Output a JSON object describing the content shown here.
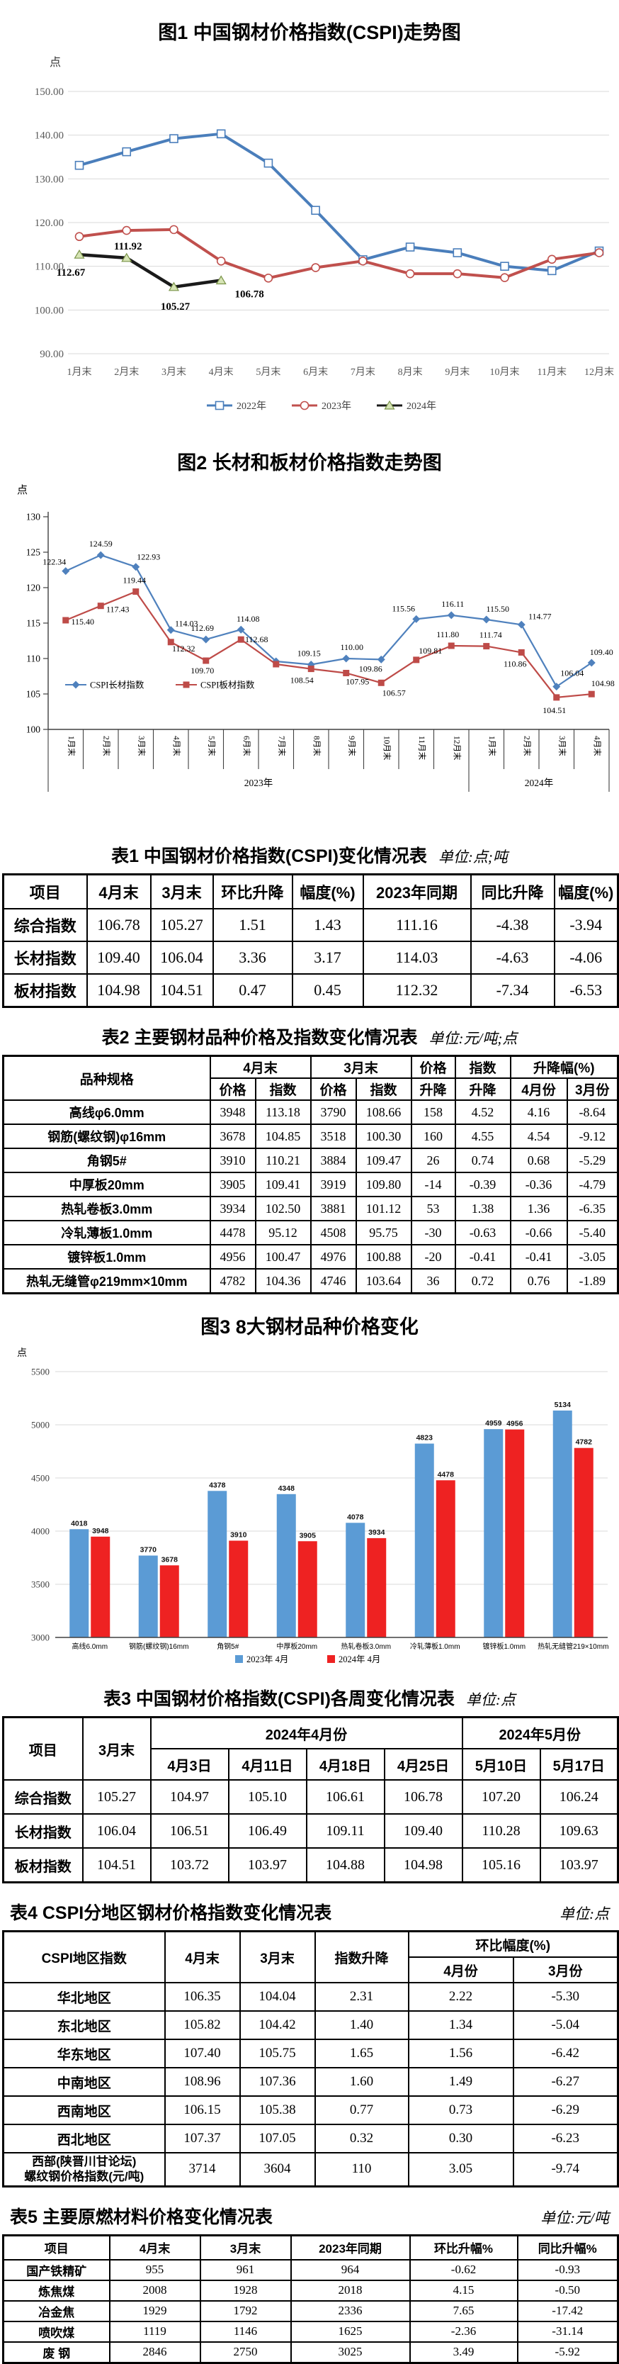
{
  "chart_data": [
    {
      "id": "figure1",
      "type": "line",
      "title": "图1 中国钢材价格指数(CSPI)走势图",
      "unit_label": "点",
      "categories": [
        "1月末",
        "2月末",
        "3月末",
        "4月末",
        "5月末",
        "6月末",
        "7月末",
        "8月末",
        "9月末",
        "10月末",
        "11月末",
        "12月末"
      ],
      "ylim": [
        90,
        150
      ],
      "ytick_step": 10,
      "grid": true,
      "legend_position": "bottom",
      "series": [
        {
          "name": "2022年",
          "color": "#4a7ebb",
          "marker": "square",
          "marker_style": "hollow",
          "values": [
            133.1,
            136.2,
            139.2,
            140.3,
            133.6,
            122.8,
            111.5,
            114.4,
            113.1,
            110.0,
            109.0,
            113.5
          ]
        },
        {
          "name": "2023年",
          "color": "#c0504d",
          "marker": "circle",
          "marker_style": "hollow",
          "values": [
            116.8,
            118.2,
            118.4,
            111.2,
            107.3,
            109.7,
            111.2,
            108.3,
            108.3,
            107.4,
            111.6,
            113.1
          ]
        },
        {
          "name": "2024年",
          "color": "#1a1a1a",
          "marker": "triangle",
          "marker_style": "solid",
          "marker_fill": "#d6e4b5",
          "values": [
            112.67,
            111.92,
            105.27,
            106.78
          ],
          "labels": [
            "112.67",
            "111.92",
            "105.27",
            "106.78"
          ]
        }
      ]
    },
    {
      "id": "figure2",
      "type": "line",
      "title": "图2 长材和板材价格指数走势图",
      "unit_label": "点",
      "categories": [
        "1月末",
        "2月末",
        "3月末",
        "4月末",
        "5月末",
        "6月末",
        "7月末",
        "8月末",
        "9月末",
        "10月末",
        "11月末",
        "12月末",
        "1月末",
        "2月末",
        "3月末",
        "4月末"
      ],
      "x_groups": [
        {
          "label": "2023年",
          "count": 12
        },
        {
          "label": "2024年",
          "count": 4
        }
      ],
      "ylim": [
        100,
        130
      ],
      "ytick_step": 5,
      "grid": false,
      "series": [
        {
          "name": "CSPI长材指数",
          "color": "#4f81bd",
          "marker": "diamond",
          "marker_style": "solid",
          "values": [
            122.34,
            124.59,
            122.93,
            114.03,
            112.69,
            114.08,
            109.6,
            109.15,
            110.0,
            109.86,
            115.56,
            116.11,
            115.5,
            114.77,
            106.04,
            109.4
          ],
          "labels": [
            "122.34",
            "124.59",
            "122.93",
            "114.03",
            "112.69",
            "114.08",
            "",
            "109.15",
            "110.00",
            "109.86",
            "115.56",
            "116.11",
            "115.50",
            "114.77",
            "106.04",
            "109.40"
          ]
        },
        {
          "name": "CSPI板材指数",
          "color": "#be4b48",
          "marker": "square",
          "marker_style": "solid",
          "values": [
            115.4,
            117.43,
            119.44,
            112.32,
            109.7,
            112.68,
            109.2,
            108.54,
            107.95,
            106.57,
            109.81,
            111.8,
            111.74,
            110.86,
            104.51,
            104.98
          ],
          "labels": [
            "115.40",
            "117.43",
            "119.44",
            "112.32",
            "109.70",
            "112.68",
            "",
            "108.54",
            "107.95",
            "106.57",
            "109.81",
            "111.80",
            "111.74",
            "110.86",
            "104.51",
            "104.98"
          ]
        }
      ]
    },
    {
      "id": "figure3",
      "type": "bar",
      "title": "图3 8大钢材品种价格变化",
      "unit_label": "点",
      "categories": [
        "高线6.0mm",
        "钢筋(螺纹钢)16mm",
        "角钢5#",
        "中厚板20mm",
        "热轧卷板3.0mm",
        "冷轧薄板1.0mm",
        "镀锌板1.0mm",
        "热轧无缝管219×10mm"
      ],
      "ylim": [
        3000,
        5500
      ],
      "ytick_step": 500,
      "legend_position": "bottom",
      "series": [
        {
          "name": "2023年 4月",
          "color": "#5b9bd5",
          "values": [
            4018,
            3770,
            4378,
            4348,
            4078,
            4823,
            4959,
            5134
          ]
        },
        {
          "name": "2024年 4月",
          "color": "#ee2222",
          "values": [
            3948,
            3678,
            3910,
            3905,
            3934,
            4478,
            4956,
            4782
          ]
        }
      ]
    }
  ],
  "tables": {
    "table1": {
      "title": "表1 中国钢材价格指数(CSPI)变化情况表",
      "unit": "单位:点;吨",
      "header": [
        [
          "项目",
          "4月末",
          "3月末",
          "环比升降",
          "幅度(%)",
          "2023年同期",
          "同比升降",
          "幅度(%)"
        ]
      ],
      "rows": [
        [
          "综合指数",
          "106.78",
          "105.27",
          "1.51",
          "1.43",
          "111.16",
          "-4.38",
          "-3.94"
        ],
        [
          "长材指数",
          "109.40",
          "106.04",
          "3.36",
          "3.17",
          "114.03",
          "-4.63",
          "-4.06"
        ],
        [
          "板材指数",
          "104.98",
          "104.51",
          "0.47",
          "0.45",
          "112.32",
          "-7.34",
          "-6.53"
        ]
      ]
    },
    "table2": {
      "title": "表2 主要钢材品种价格及指数变化情况表",
      "unit": "单位:元/吨;点",
      "header": [
        [
          {
            "t": "品种规格",
            "rs": 2
          },
          {
            "t": "4月末",
            "cs": 2
          },
          {
            "t": "3月末",
            "cs": 2
          },
          {
            "t": "价格"
          },
          {
            "t": "指数"
          },
          {
            "t": "升降幅(%)",
            "cs": 2
          }
        ],
        [
          "价格",
          "指数",
          "价格",
          "指数",
          "升降",
          "升降",
          "4月份",
          "3月份"
        ]
      ],
      "rows": [
        [
          "高线φ6.0mm",
          "3948",
          "113.18",
          "3790",
          "108.66",
          "158",
          "4.52",
          "4.16",
          "-8.64"
        ],
        [
          "钢筋(螺纹钢)φ16mm",
          "3678",
          "104.85",
          "3518",
          "100.30",
          "160",
          "4.55",
          "4.54",
          "-9.12"
        ],
        [
          "角钢5#",
          "3910",
          "110.21",
          "3884",
          "109.47",
          "26",
          "0.74",
          "0.68",
          "-5.29"
        ],
        [
          "中厚板20mm",
          "3905",
          "109.41",
          "3919",
          "109.80",
          "-14",
          "-0.39",
          "-0.36",
          "-4.79"
        ],
        [
          "热轧卷板3.0mm",
          "3934",
          "102.50",
          "3881",
          "101.12",
          "53",
          "1.38",
          "1.36",
          "-6.35"
        ],
        [
          "冷轧薄板1.0mm",
          "4478",
          "95.12",
          "4508",
          "95.75",
          "-30",
          "-0.63",
          "-0.66",
          "-5.40"
        ],
        [
          "镀锌板1.0mm",
          "4956",
          "100.47",
          "4976",
          "100.88",
          "-20",
          "-0.41",
          "-0.41",
          "-3.05"
        ],
        [
          "热轧无缝管φ219mm×10mm",
          "4782",
          "104.36",
          "4746",
          "103.64",
          "36",
          "0.72",
          "0.76",
          "-1.89"
        ]
      ]
    },
    "table3": {
      "title": "表3 中国钢材价格指数(CSPI)各周变化情况表",
      "unit": "单位:点",
      "header": [
        [
          {
            "t": "项目",
            "rs": 2
          },
          {
            "t": "3月末",
            "rs": 2
          },
          {
            "t": "2024年4月份",
            "cs": 4
          },
          {
            "t": "2024年5月份",
            "cs": 2
          }
        ],
        [
          "4月3日",
          "4月11日",
          "4月18日",
          "4月25日",
          "5月10日",
          "5月17日"
        ]
      ],
      "rows": [
        [
          "综合指数",
          "105.27",
          "104.97",
          "105.10",
          "106.61",
          "106.78",
          "107.20",
          "106.24"
        ],
        [
          "长材指数",
          "106.04",
          "106.51",
          "106.49",
          "109.11",
          "109.40",
          "110.28",
          "109.63"
        ],
        [
          "板材指数",
          "104.51",
          "103.72",
          "103.97",
          "104.88",
          "104.98",
          "105.16",
          "103.97"
        ]
      ]
    },
    "table4": {
      "title": "表4 CSPI分地区钢材价格指数变化情况表",
      "unit": "单位:点",
      "header": [
        [
          {
            "t": "CSPI地区指数",
            "rs": 2
          },
          {
            "t": "4月末",
            "rs": 2
          },
          {
            "t": "3月末",
            "rs": 2
          },
          {
            "t": "指数升降",
            "rs": 2
          },
          {
            "t": "环比幅度(%)",
            "cs": 2
          }
        ],
        [
          "4月份",
          "3月份"
        ]
      ],
      "rows": [
        [
          "华北地区",
          "106.35",
          "104.04",
          "2.31",
          "2.22",
          "-5.30"
        ],
        [
          "东北地区",
          "105.82",
          "104.42",
          "1.40",
          "1.34",
          "-5.04"
        ],
        [
          "华东地区",
          "107.40",
          "105.75",
          "1.65",
          "1.56",
          "-6.42"
        ],
        [
          "中南地区",
          "108.96",
          "107.36",
          "1.60",
          "1.49",
          "-6.27"
        ],
        [
          "西南地区",
          "106.15",
          "105.38",
          "0.77",
          "0.73",
          "-6.29"
        ],
        [
          "西北地区",
          "107.37",
          "107.05",
          "0.32",
          "0.30",
          "-6.23"
        ],
        [
          "西部(陕晋川甘论坛)\n螺纹钢价格指数(元/吨)",
          "3714",
          "3604",
          "110",
          "3.05",
          "-9.74"
        ]
      ]
    },
    "table5": {
      "title": "表5 主要原燃材料价格变化情况表",
      "unit": "单位:元/吨",
      "header": [
        [
          "项目",
          "4月末",
          "3月末",
          "2023年同期",
          "环比升幅%",
          "同比升幅%"
        ]
      ],
      "rows": [
        [
          "国产铁精矿",
          "955",
          "961",
          "964",
          "-0.62",
          "-0.93"
        ],
        [
          "炼焦煤",
          "2008",
          "1928",
          "2018",
          "4.15",
          "-0.50"
        ],
        [
          "冶金焦",
          "1929",
          "1792",
          "2336",
          "7.65",
          "-17.42"
        ],
        [
          "喷吹煤",
          "1119",
          "1146",
          "1625",
          "-2.36",
          "-31.14"
        ],
        [
          "废 钢",
          "2846",
          "2750",
          "3025",
          "3.49",
          "-5.92"
        ]
      ]
    }
  }
}
